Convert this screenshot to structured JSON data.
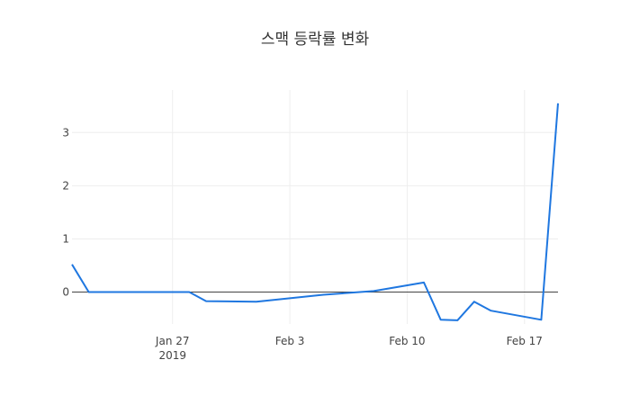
{
  "chart_data": {
    "type": "line",
    "title": "스맥 등락률 변화",
    "xlabel": "",
    "ylabel": "",
    "x_range": [
      "2019-01-21",
      "2019-02-19"
    ],
    "ylim": [
      -0.6,
      3.8
    ],
    "grid": true,
    "x_ticks": [
      {
        "date": "2019-01-27",
        "label": "Jan 27",
        "sublabel": "2019"
      },
      {
        "date": "2019-02-03",
        "label": "Feb 3",
        "sublabel": ""
      },
      {
        "date": "2019-02-10",
        "label": "Feb 10",
        "sublabel": ""
      },
      {
        "date": "2019-02-17",
        "label": "Feb 17",
        "sublabel": ""
      }
    ],
    "y_ticks": [
      0,
      1,
      2,
      3
    ],
    "series": [
      {
        "color": "#1f77e0",
        "x": [
          "2019-01-21",
          "2019-01-22",
          "2019-01-28",
          "2019-01-29",
          "2019-02-01",
          "2019-02-05",
          "2019-02-08",
          "2019-02-11",
          "2019-02-12",
          "2019-02-13",
          "2019-02-14",
          "2019-02-15",
          "2019-02-18",
          "2019-02-19"
        ],
        "y": [
          0.52,
          0.0,
          0.0,
          -0.17,
          -0.18,
          -0.05,
          0.02,
          0.18,
          -0.52,
          -0.53,
          -0.18,
          -0.35,
          -0.52,
          3.55
        ]
      }
    ]
  }
}
